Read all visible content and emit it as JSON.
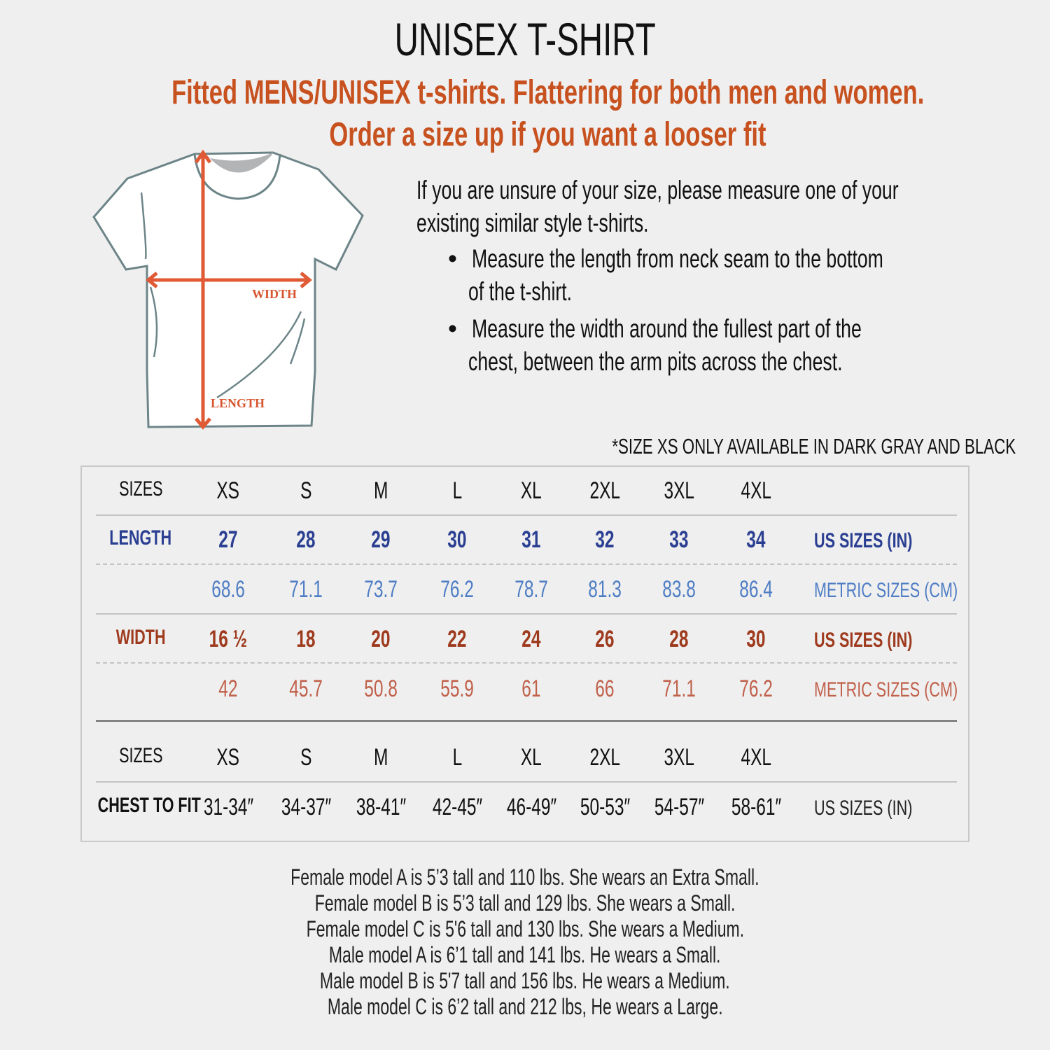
{
  "title": "UNISEX T-SHIRT",
  "subtitle_line1": "Fitted MENS/UNISEX t-shirts. Flattering for both men and women.",
  "subtitle_line2": "Order a size up if you want a looser fit",
  "diagram": {
    "width_label": "WIDTH",
    "length_label": "LENGTH"
  },
  "instructions": {
    "intro_line1": "If you are unsure of your size, please measure one of your",
    "intro_line2": "existing similar style t-shirts.",
    "bullets": [
      {
        "line1": "Measure the length from neck seam to the bottom",
        "line2": "of the t-shirt."
      },
      {
        "line1": "Measure the width around the fullest part of the",
        "line2": "chest, between the arm pits across the chest."
      }
    ]
  },
  "xs_note": "*SIZE XS ONLY AVAILABLE IN DARK GRAY AND BLACK",
  "colors": {
    "accent": "#c7511f",
    "length": "#2b3f92",
    "length_metric": "#4e7dc4",
    "width": "#9e3a1d",
    "width_metric": "#c0614b"
  },
  "table": {
    "sizes_label": "SIZES",
    "sizes": [
      "XS",
      "S",
      "M",
      "L",
      "XL",
      "2XL",
      "3XL",
      "4XL"
    ],
    "length_label": "LENGTH",
    "length_in": [
      "27",
      "28",
      "29",
      "30",
      "31",
      "32",
      "33",
      "34"
    ],
    "length_cm": [
      "68.6",
      "71.1",
      "73.7",
      "76.2",
      "78.7",
      "81.3",
      "83.8",
      "86.4"
    ],
    "width_label": "WIDTH",
    "width_in": [
      "16 ½",
      "18",
      "20",
      "22",
      "24",
      "26",
      "28",
      "30"
    ],
    "width_cm": [
      "42",
      "45.7",
      "50.8",
      "55.9",
      "61",
      "66",
      "71.1",
      "76.2"
    ],
    "us_label": "US SIZES (IN)",
    "metric_label": "METRIC SIZES (CM)",
    "chest_label": "CHEST TO FIT",
    "chest_in": [
      "31-34″",
      "34-37″",
      "38-41″",
      "42-45″",
      "46-49″",
      "50-53″",
      "54-57″",
      "58-61″"
    ]
  },
  "models": [
    "Female model A is 5’3 tall and 110 lbs. She wears an Extra Small.",
    "Female model B is 5’3 tall and 129 lbs. She wears a Small.",
    "Female model C is 5'6 tall and 130 lbs. She wears a Medium.",
    "Male model A is 6’1 tall and 141 lbs. He wears a Small.",
    "Male model B is 5'7 tall and 156 lbs. He wears a Medium.",
    "Male model C is 6’2 tall and 212 lbs, He wears a Large."
  ]
}
